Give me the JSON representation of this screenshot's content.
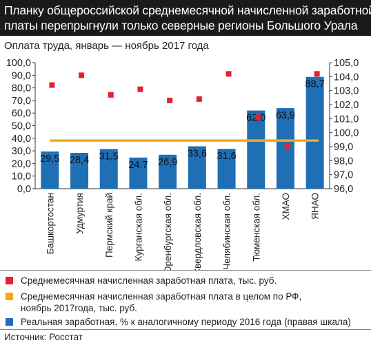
{
  "title_line1": "Планку общероссийской среднемесячной начисленной заработной",
  "title_line2": "платы перепрыгнули только северные регионы Большого Урала",
  "subtitle": "Оплата труда, январь — ноябрь 2017 года",
  "source": "Источник: Росстат",
  "colors": {
    "bar": "#1f6fb5",
    "marker": "#e8202a",
    "reference_line": "#f5a81c"
  },
  "legend": {
    "salary": "Среднемесячная начисленная  заработная плата, тыс. руб.",
    "russia_line1": "Среднемесячная начисленная заработная плата в целом по РФ,",
    "russia_line2": "ноябрь 2017года, тыс. руб.",
    "real": "Реальная заработная, % к аналогичному периоду 2016 года (правая шкала)"
  },
  "chart_data": {
    "type": "bar",
    "categories": [
      "Башкортостан",
      "Удмуртия",
      "Пермский край",
      "Курганская обл.",
      "Оренбургская обл.",
      "Свердловская обл.",
      "Челябинская обл.",
      "Тюменская обл.",
      "ХМАО",
      "ЯНАО"
    ],
    "left_axis": {
      "ylim": [
        0,
        100
      ],
      "ticks": [
        "0,0",
        "10,0",
        "20,0",
        "30,0",
        "40,0",
        "50,0",
        "60,0",
        "70,0",
        "80,0",
        "90,0",
        "100,0"
      ]
    },
    "right_axis": {
      "ylim": [
        96,
        105
      ],
      "ticks": [
        "96,0",
        "97,0",
        "98,0",
        "99,0",
        "100,0",
        "101,0",
        "102,0",
        "103,0",
        "104,0",
        "105,0"
      ]
    },
    "bar_series": {
      "values": [
        29.5,
        28.4,
        31.5,
        24.7,
        26.9,
        33.6,
        31.6,
        62.0,
        63.9,
        88.7
      ],
      "labels": [
        "29,5",
        "28,4",
        "31,5",
        "24,7",
        "26,9",
        "33,6",
        "31,6",
        "62,0",
        "63,9",
        "88,7"
      ]
    },
    "marker_series": {
      "axis": "right",
      "values": [
        103.4,
        104.1,
        102.7,
        103.1,
        102.3,
        102.4,
        104.2,
        101.1,
        99.0,
        104.2
      ]
    },
    "reference_line": {
      "value": 38.2
    }
  }
}
